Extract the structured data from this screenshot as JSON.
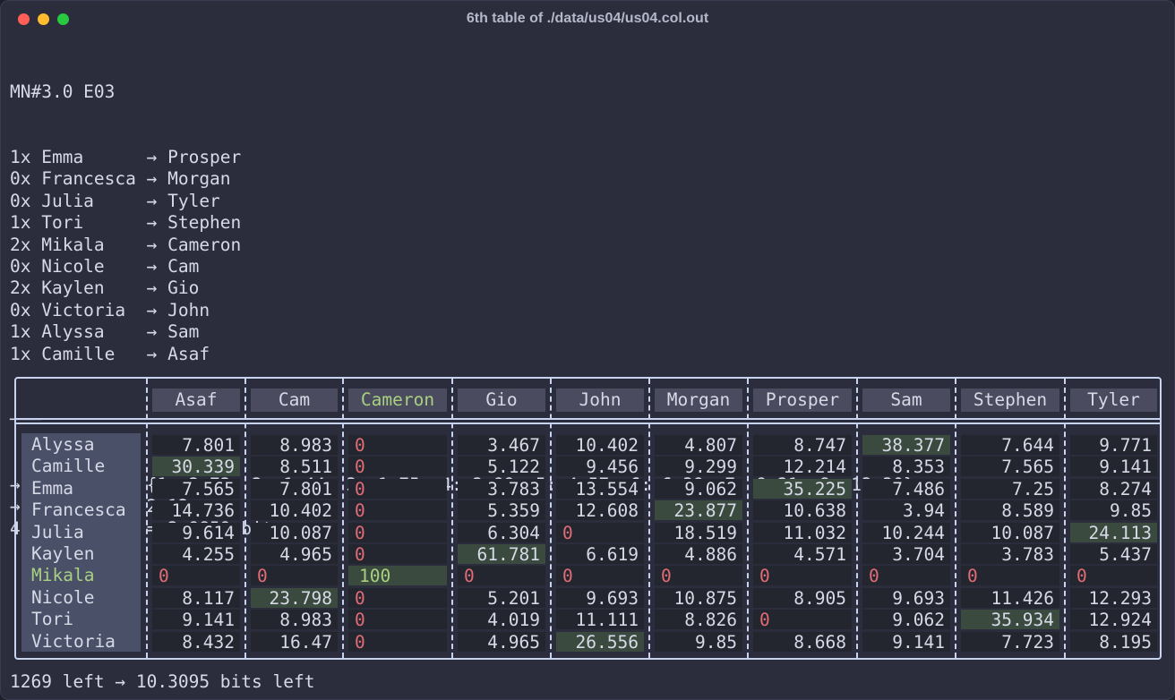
{
  "window": {
    "title": "6th table of ./data/us04/us04.col.out"
  },
  "header_line": "MN#3.0 E03",
  "matches": [
    "1x Emma      → Prosper",
    "0x Francesca → Morgan",
    "0x Julia     → Tyler",
    "1x Tori      → Stephen",
    "2x Mikala    → Cameron",
    "0x Nicole    → Cam",
    "2x Kaylen    → Gio",
    "0x Victoria  → John",
    "1x Alyssa    → Sam",
    "1x Camille   → Asaf"
  ],
  "separator": "───",
  "info_lines": [
    "→ I[l]/bits: {1: 2.72, 2: 1.44, 3: 1.75, 4: 2.99, 5: 4.57, 6: 6.39, 7: 9.21, 8: 13.30}",
    "→ E[I]/bits: 2.13",
    "4 lights ⇒ I = 2.9859 bits"
  ],
  "table": {
    "columns": [
      "Asaf",
      "Cam",
      "Cameron",
      "Gio",
      "John",
      "Morgan",
      "Prosper",
      "Sam",
      "Stephen",
      "Tyler"
    ],
    "highlighted_column": "Cameron",
    "highlighted_row": "Mikala",
    "rows": [
      {
        "name": "Alyssa",
        "values": [
          "7.801",
          "8.983",
          "0",
          "3.467",
          "10.402",
          "4.807",
          "8.747",
          "38.377",
          "7.644",
          "9.771"
        ]
      },
      {
        "name": "Camille",
        "values": [
          "30.339",
          "8.511",
          "0",
          "5.122",
          "9.456",
          "9.299",
          "12.214",
          "8.353",
          "7.565",
          "9.141"
        ]
      },
      {
        "name": "Emma",
        "values": [
          "7.565",
          "7.801",
          "0",
          "3.783",
          "13.554",
          "9.062",
          "35.225",
          "7.486",
          "7.25",
          "8.274"
        ]
      },
      {
        "name": "Francesca",
        "values": [
          "14.736",
          "10.402",
          "0",
          "5.359",
          "12.608",
          "23.877",
          "10.638",
          "3.94",
          "8.589",
          "9.85"
        ]
      },
      {
        "name": "Julia",
        "values": [
          "9.614",
          "10.087",
          "0",
          "6.304",
          "0",
          "18.519",
          "11.032",
          "10.244",
          "10.087",
          "24.113"
        ]
      },
      {
        "name": "Kaylen",
        "values": [
          "4.255",
          "4.965",
          "0",
          "61.781",
          "6.619",
          "4.886",
          "4.571",
          "3.704",
          "3.783",
          "5.437"
        ]
      },
      {
        "name": "Mikala",
        "values": [
          "0",
          "0",
          "100",
          "0",
          "0",
          "0",
          "0",
          "0",
          "0",
          "0"
        ]
      },
      {
        "name": "Nicole",
        "values": [
          "8.117",
          "23.798",
          "0",
          "5.201",
          "9.693",
          "10.875",
          "8.905",
          "9.693",
          "11.426",
          "12.293"
        ]
      },
      {
        "name": "Tori",
        "values": [
          "9.141",
          "8.983",
          "0",
          "4.019",
          "11.111",
          "8.826",
          "0",
          "9.062",
          "35.934",
          "12.924"
        ]
      },
      {
        "name": "Victoria",
        "values": [
          "8.432",
          "16.47",
          "0",
          "4.965",
          "26.556",
          "9.85",
          "8.668",
          "9.141",
          "7.723",
          "8.195"
        ]
      }
    ],
    "best_cells": [
      [
        0,
        7
      ],
      [
        1,
        0
      ],
      [
        2,
        6
      ],
      [
        3,
        5
      ],
      [
        4,
        9
      ],
      [
        5,
        3
      ],
      [
        6,
        2
      ],
      [
        7,
        1
      ],
      [
        8,
        8
      ],
      [
        9,
        4
      ]
    ]
  },
  "footer": "1269 left → 10.3095 bits left",
  "colors": {
    "highlight_green": "#a8d080",
    "zero_red": "#e06c75",
    "best_bg": "#3b4a3e"
  }
}
